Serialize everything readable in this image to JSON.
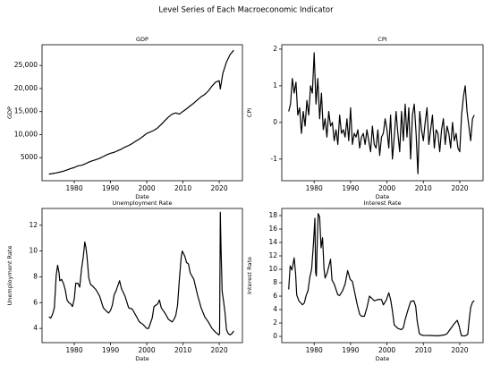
{
  "title": "Level Series of Each Macroeconomic Indicator",
  "chart_data": [
    {
      "type": "line",
      "title": "GDP",
      "xlabel": "Date",
      "ylabel": "GDP",
      "color": "#000000",
      "x": [
        1973,
        1974,
        1975,
        1976,
        1977,
        1978,
        1979,
        1980,
        1981,
        1982,
        1983,
        1984,
        1985,
        1986,
        1987,
        1988,
        1989,
        1990,
        1991,
        1992,
        1993,
        1994,
        1995,
        1996,
        1997,
        1998,
        1999,
        2000,
        2001,
        2002,
        2003,
        2004,
        2005,
        2006,
        2007,
        2008,
        2009,
        2010,
        2011,
        2012,
        2013,
        2014,
        2015,
        2016,
        2017,
        2018,
        2019,
        2020,
        2020.3,
        2021,
        2022,
        2023,
        2024
      ],
      "values": [
        1430,
        1550,
        1690,
        1870,
        2080,
        2350,
        2630,
        2860,
        3210,
        3340,
        3640,
        4040,
        4340,
        4580,
        4860,
        5240,
        5640,
        5960,
        6160,
        6520,
        6860,
        7290,
        7640,
        8070,
        8580,
        9060,
        9630,
        10250,
        10580,
        10940,
        11460,
        12210,
        13040,
        13810,
        14450,
        14710,
        14450,
        15050,
        15600,
        16250,
        16840,
        17550,
        18210,
        18700,
        19480,
        20530,
        21380,
        21700,
        19900,
        23310,
        25740,
        27360,
        28300
      ],
      "xlim": [
        1971.1,
        2026.4
      ],
      "ylim": [
        0,
        29500
      ],
      "xticks": [
        1980,
        1990,
        2000,
        2010,
        2020
      ],
      "yticks": [
        5000,
        {
          "value": 10000,
          "label": "10,000"
        },
        {
          "value": 15000,
          "label": "15,000"
        },
        {
          "value": 20000,
          "label": "20,000"
        },
        {
          "value": 25000,
          "label": "25,000"
        }
      ]
    },
    {
      "type": "line",
      "title": "CPI",
      "xlabel": "Date",
      "ylabel": "CPI",
      "color": "#000000",
      "x": [
        1973,
        1973.5,
        1974,
        1974.5,
        1975,
        1975.5,
        1976,
        1976.5,
        1977,
        1977.5,
        1978,
        1978.5,
        1979,
        1979.5,
        1980,
        1980.5,
        1981,
        1981.5,
        1982,
        1982.5,
        1983,
        1983.5,
        1984,
        1984.5,
        1985,
        1985.5,
        1986,
        1986.5,
        1987,
        1987.5,
        1988,
        1988.5,
        1989,
        1989.5,
        1990,
        1990.5,
        1991,
        1991.5,
        1992,
        1992.5,
        1993,
        1993.5,
        1994,
        1994.5,
        1995,
        1995.5,
        1996,
        1996.5,
        1997,
        1997.5,
        1998,
        1998.5,
        1999,
        1999.5,
        2000,
        2000.5,
        2001,
        2001.5,
        2002,
        2002.5,
        2003,
        2003.5,
        2004,
        2004.5,
        2005,
        2005.5,
        2006,
        2006.5,
        2007,
        2007.5,
        2008,
        2008.5,
        2009,
        2009.5,
        2010,
        2010.5,
        2011,
        2011.5,
        2012,
        2012.5,
        2013,
        2013.5,
        2014,
        2014.5,
        2015,
        2015.5,
        2016,
        2016.5,
        2017,
        2017.5,
        2018,
        2018.5,
        2019,
        2019.5,
        2020,
        2020.5,
        2021,
        2021.5,
        2022,
        2022.5,
        2023,
        2023.5,
        2024
      ],
      "values": [
        0.3,
        0.5,
        1.2,
        0.8,
        1.1,
        0.2,
        0.4,
        -0.3,
        0.3,
        -0.1,
        0.6,
        0.2,
        1.0,
        0.8,
        1.9,
        0.5,
        1.2,
        0.1,
        0.8,
        -0.2,
        0.1,
        -0.4,
        0.3,
        -0.1,
        0.0,
        -0.5,
        -0.2,
        -0.6,
        0.2,
        -0.3,
        -0.2,
        -0.4,
        0.1,
        -0.5,
        0.4,
        -0.6,
        -0.3,
        -0.4,
        -0.2,
        -0.7,
        -0.4,
        -0.3,
        -0.6,
        -0.2,
        -0.5,
        -0.8,
        -0.1,
        -0.6,
        -0.7,
        -0.2,
        -0.9,
        -0.4,
        -0.3,
        0.1,
        -0.2,
        -0.7,
        0.2,
        -1.0,
        -0.4,
        0.3,
        -0.3,
        -0.8,
        0.3,
        -0.5,
        0.5,
        -0.4,
        0.4,
        -1.0,
        0.2,
        0.5,
        -0.3,
        -1.4,
        0.3,
        -0.2,
        -0.5,
        0.0,
        0.4,
        -0.6,
        -0.2,
        0.2,
        -0.7,
        -0.2,
        -0.3,
        -0.8,
        -0.2,
        0.1,
        -0.6,
        -0.1,
        -0.3,
        -0.7,
        0.0,
        -0.5,
        -0.3,
        -0.7,
        -0.8,
        0.2,
        0.7,
        1.0,
        0.3,
        -0.1,
        -0.5,
        0.1,
        0.2
      ],
      "xlim": [
        1971.1,
        2026.4
      ],
      "ylim": [
        -1.59,
        2.12
      ],
      "xticks": [
        1980,
        1990,
        2000,
        2010,
        2020
      ],
      "yticks": [
        -1,
        0,
        1,
        2
      ]
    },
    {
      "type": "line",
      "title": "Unemployment Rate",
      "xlabel": "Date",
      "ylabel": "Unemployment Rate",
      "color": "#000000",
      "x": [
        1973,
        1973.5,
        1974,
        1974.5,
        1975,
        1975.4,
        1975.8,
        1976,
        1976.5,
        1977,
        1977.5,
        1978,
        1978.5,
        1979,
        1979.5,
        1980,
        1980.4,
        1981,
        1981.5,
        1982,
        1982.5,
        1982.9,
        1983.2,
        1983.5,
        1984,
        1984.5,
        1985,
        1986,
        1987,
        1988,
        1989,
        1989.5,
        1990,
        1990.5,
        1991,
        1991.5,
        1992,
        1992.5,
        1993,
        1994,
        1995,
        1996,
        1997,
        1998,
        1999,
        2000,
        2000.5,
        2001,
        2001.5,
        2002,
        2003,
        2003.5,
        2004,
        2005,
        2006,
        2007,
        2007.5,
        2008,
        2008.5,
        2009,
        2009.5,
        2009.8,
        2010.5,
        2011,
        2011.5,
        2012,
        2013,
        2014,
        2015,
        2016,
        2017,
        2018,
        2019,
        2019.9,
        2020.1,
        2020.3,
        2020.5,
        2020.8,
        2021.2,
        2021.6,
        2022,
        2022.5,
        2023,
        2023.5,
        2024
      ],
      "values": [
        4.9,
        4.8,
        5.1,
        5.6,
        8.1,
        8.9,
        8.3,
        7.7,
        7.8,
        7.5,
        7.0,
        6.2,
        6.0,
        5.9,
        5.7,
        6.3,
        7.5,
        7.5,
        7.2,
        8.6,
        9.6,
        10.7,
        10.3,
        9.6,
        7.9,
        7.4,
        7.3,
        7.0,
        6.5,
        5.6,
        5.3,
        5.2,
        5.4,
        5.8,
        6.6,
        6.9,
        7.3,
        7.7,
        7.1,
        6.5,
        5.6,
        5.5,
        5.0,
        4.5,
        4.3,
        4.0,
        4.0,
        4.4,
        4.8,
        5.7,
        5.9,
        6.2,
        5.6,
        5.2,
        4.7,
        4.5,
        4.7,
        5.0,
        5.8,
        7.8,
        9.5,
        10.0,
        9.6,
        9.1,
        9.0,
        8.3,
        7.8,
        6.6,
        5.6,
        4.9,
        4.5,
        4.0,
        3.7,
        3.5,
        3.6,
        13.0,
        10.2,
        6.9,
        6.1,
        5.2,
        3.9,
        3.6,
        3.5,
        3.6,
        3.8
      ],
      "xlim": [
        1971.1,
        2026.4
      ],
      "ylim": [
        2.9,
        13.3
      ],
      "xticks": [
        1980,
        1990,
        2000,
        2010,
        2020
      ],
      "yticks": [
        4,
        6,
        8,
        10,
        12
      ]
    },
    {
      "type": "line",
      "title": "Interest Rate",
      "xlabel": "Date",
      "ylabel": "Interest Rate",
      "color": "#000000",
      "x": [
        1973,
        1973.4,
        1973.9,
        1974.5,
        1974.9,
        1975.2,
        1975.8,
        1976.3,
        1976.8,
        1977.3,
        1977.8,
        1978.3,
        1978.8,
        1979.3,
        1979.8,
        1980.2,
        1980.4,
        1980.6,
        1980.9,
        1981.1,
        1981.5,
        1981.9,
        1982.3,
        1982.7,
        1983,
        1983.6,
        1984.5,
        1984.9,
        1985.5,
        1986.5,
        1987,
        1987.8,
        1988.5,
        1989.2,
        1989.9,
        1990.5,
        1991,
        1991.8,
        1992.5,
        1993,
        1993.8,
        1994.5,
        1995.2,
        1995.8,
        1996.5,
        1997.5,
        1998.5,
        1999,
        1999.8,
        2000.5,
        2001,
        2001.5,
        2002,
        2003,
        2004,
        2004.5,
        2005,
        2005.8,
        2006.5,
        2007.4,
        2007.9,
        2008.3,
        2008.9,
        2009.5,
        2010,
        2012,
        2014,
        2015.9,
        2016.5,
        2017.5,
        2018.5,
        2019.3,
        2019.8,
        2020.2,
        2020.5,
        2021.5,
        2022.2,
        2022.6,
        2023,
        2023.5,
        2024
      ],
      "values": [
        7.0,
        10.5,
        9.9,
        11.7,
        9.4,
        6.2,
        5.3,
        5.0,
        4.7,
        5.0,
        6.1,
        6.8,
        8.8,
        10.0,
        13.8,
        17.6,
        9.5,
        9.0,
        15.0,
        18.3,
        17.8,
        13.2,
        14.7,
        10.1,
        8.7,
        9.5,
        11.5,
        8.4,
        7.8,
        6.2,
        6.1,
        6.8,
        7.8,
        9.8,
        8.5,
        8.2,
        6.9,
        4.8,
        3.3,
        3.0,
        3.0,
        4.3,
        6.0,
        5.7,
        5.3,
        5.5,
        5.5,
        4.7,
        5.4,
        6.5,
        5.5,
        3.8,
        1.7,
        1.2,
        1.0,
        1.3,
        2.5,
        4.0,
        5.2,
        5.3,
        4.5,
        2.3,
        0.4,
        0.2,
        0.15,
        0.14,
        0.09,
        0.24,
        0.4,
        1.15,
        1.9,
        2.4,
        1.6,
        0.65,
        0.08,
        0.08,
        0.3,
        2.5,
        4.3,
        5.1,
        5.33
      ],
      "xlim": [
        1971.1,
        2026.4
      ],
      "ylim": [
        -0.93,
        19.07
      ],
      "xticks": [
        1980,
        1990,
        2000,
        2010,
        2020
      ],
      "yticks": [
        0,
        2,
        4,
        6,
        8,
        10,
        12,
        14,
        16,
        18
      ]
    }
  ]
}
